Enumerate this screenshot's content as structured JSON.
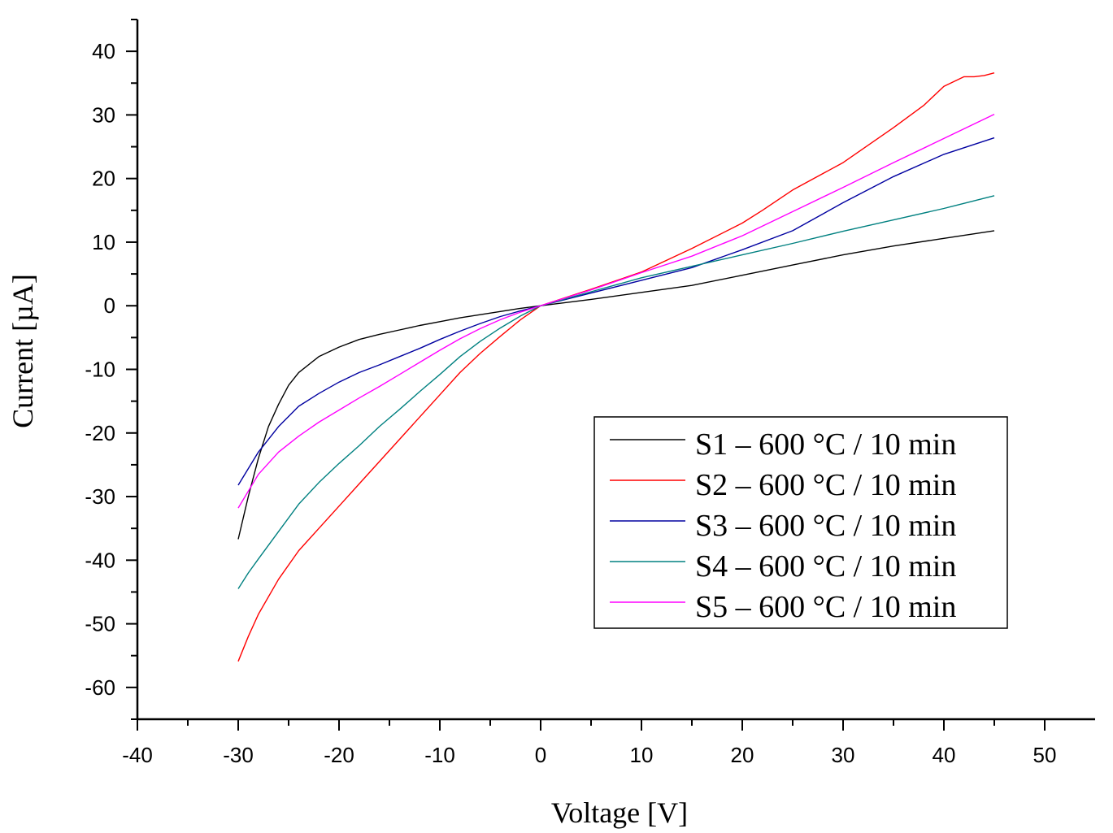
{
  "chart_data": {
    "type": "line",
    "xlabel": "Voltage [V]",
    "ylabel": "Current [µA]",
    "xlim": [
      -40,
      55
    ],
    "ylim": [
      -65,
      45
    ],
    "xticks": [
      -40,
      -30,
      -20,
      -10,
      0,
      10,
      20,
      30,
      40,
      50
    ],
    "yticks": [
      40,
      30,
      20,
      10,
      0,
      -10,
      -20,
      -30,
      -40,
      -50,
      -60
    ],
    "grid": false,
    "legend_position": "lower-right",
    "series": [
      {
        "name": "S1 – 600 °C / 10 min",
        "color": "#000000",
        "points": [
          [
            -30,
            -36.7
          ],
          [
            -29,
            -30
          ],
          [
            -28,
            -24
          ],
          [
            -27,
            -19
          ],
          [
            -26,
            -15.5
          ],
          [
            -25,
            -12.5
          ],
          [
            -24,
            -10.5
          ],
          [
            -22,
            -8
          ],
          [
            -20,
            -6.5
          ],
          [
            -18,
            -5.3
          ],
          [
            -16,
            -4.5
          ],
          [
            -14,
            -3.8
          ],
          [
            -12,
            -3.1
          ],
          [
            -10,
            -2.5
          ],
          [
            -8,
            -1.9
          ],
          [
            -6,
            -1.4
          ],
          [
            -4,
            -0.9
          ],
          [
            -2,
            -0.4
          ],
          [
            0,
            0
          ],
          [
            5,
            1
          ],
          [
            10,
            2.1
          ],
          [
            15,
            3.2
          ],
          [
            20,
            4.8
          ],
          [
            25,
            6.4
          ],
          [
            30,
            8
          ],
          [
            35,
            9.4
          ],
          [
            40,
            10.6
          ],
          [
            45,
            11.8
          ]
        ]
      },
      {
        "name": "S2 – 600 °C / 10 min",
        "color": "#ff0000",
        "points": [
          [
            -30,
            -55.9
          ],
          [
            -29,
            -52
          ],
          [
            -28,
            -48.5
          ],
          [
            -26,
            -43
          ],
          [
            -24,
            -38.5
          ],
          [
            -22,
            -35
          ],
          [
            -20,
            -31.5
          ],
          [
            -18,
            -28
          ],
          [
            -16,
            -24.5
          ],
          [
            -14,
            -21
          ],
          [
            -12,
            -17.5
          ],
          [
            -10,
            -14
          ],
          [
            -8,
            -10.5
          ],
          [
            -6,
            -7.5
          ],
          [
            -4,
            -4.8
          ],
          [
            -2,
            -2.2
          ],
          [
            0,
            0
          ],
          [
            5,
            2.6
          ],
          [
            10,
            5.3
          ],
          [
            15,
            9
          ],
          [
            20,
            13
          ],
          [
            22,
            15
          ],
          [
            25,
            18.2
          ],
          [
            30,
            22.5
          ],
          [
            35,
            28
          ],
          [
            38,
            31.5
          ],
          [
            40,
            34.5
          ],
          [
            42,
            36
          ],
          [
            43,
            36
          ],
          [
            44,
            36.2
          ],
          [
            45,
            36.6
          ]
        ]
      },
      {
        "name": "S3 – 600 °C / 10 min",
        "color": "#0000a0",
        "points": [
          [
            -30,
            -28.2
          ],
          [
            -28,
            -23
          ],
          [
            -26,
            -19
          ],
          [
            -24,
            -15.8
          ],
          [
            -22,
            -13.8
          ],
          [
            -20,
            -12
          ],
          [
            -18,
            -10.5
          ],
          [
            -16,
            -9.3
          ],
          [
            -14,
            -8
          ],
          [
            -12,
            -6.7
          ],
          [
            -10,
            -5.3
          ],
          [
            -8,
            -4
          ],
          [
            -6,
            -2.8
          ],
          [
            -4,
            -1.7
          ],
          [
            -2,
            -0.8
          ],
          [
            0,
            0
          ],
          [
            5,
            2
          ],
          [
            10,
            4
          ],
          [
            15,
            6
          ],
          [
            20,
            8.8
          ],
          [
            25,
            11.8
          ],
          [
            30,
            16.2
          ],
          [
            35,
            20.3
          ],
          [
            40,
            23.8
          ],
          [
            45,
            26.4
          ]
        ]
      },
      {
        "name": "S4 – 600 °C / 10 min",
        "color": "#008080",
        "points": [
          [
            -30,
            -44.5
          ],
          [
            -29,
            -42
          ],
          [
            -28,
            -39.8
          ],
          [
            -26,
            -35.5
          ],
          [
            -24,
            -31.2
          ],
          [
            -22,
            -27.8
          ],
          [
            -20,
            -24.8
          ],
          [
            -18,
            -22
          ],
          [
            -16,
            -19
          ],
          [
            -14,
            -16.3
          ],
          [
            -12,
            -13.5
          ],
          [
            -10,
            -10.8
          ],
          [
            -8,
            -8
          ],
          [
            -6,
            -5.6
          ],
          [
            -4,
            -3.5
          ],
          [
            -2,
            -1.6
          ],
          [
            0,
            0
          ],
          [
            5,
            2.2
          ],
          [
            10,
            4.4
          ],
          [
            15,
            6.2
          ],
          [
            20,
            8
          ],
          [
            25,
            9.8
          ],
          [
            30,
            11.7
          ],
          [
            35,
            13.5
          ],
          [
            40,
            15.3
          ],
          [
            45,
            17.3
          ]
        ]
      },
      {
        "name": "S5 – 600 °C / 10 min",
        "color": "#ff00ff",
        "points": [
          [
            -30,
            -31.8
          ],
          [
            -28,
            -26.5
          ],
          [
            -26,
            -23
          ],
          [
            -24,
            -20.5
          ],
          [
            -22,
            -18.3
          ],
          [
            -20,
            -16.4
          ],
          [
            -18,
            -14.5
          ],
          [
            -16,
            -12.7
          ],
          [
            -14,
            -10.8
          ],
          [
            -12,
            -8.9
          ],
          [
            -10,
            -7
          ],
          [
            -8,
            -5.2
          ],
          [
            -6,
            -3.6
          ],
          [
            -4,
            -2.2
          ],
          [
            -2,
            -1
          ],
          [
            0,
            0
          ],
          [
            5,
            2.5
          ],
          [
            10,
            5.2
          ],
          [
            15,
            7.8
          ],
          [
            20,
            11
          ],
          [
            25,
            14.8
          ],
          [
            30,
            18.6
          ],
          [
            35,
            22.5
          ],
          [
            40,
            26.3
          ],
          [
            45,
            30.1
          ]
        ]
      }
    ]
  }
}
